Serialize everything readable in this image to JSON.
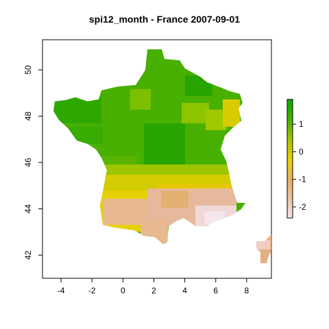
{
  "title": "spi12_month - France 2007-09-01",
  "colors": {
    "high": "#0aa800",
    "mid_green": "#7cc000",
    "neutral": "#e8d000",
    "low": "#e8b890",
    "very_low": "#f4e6ea"
  },
  "chart_data": {
    "type": "heatmap",
    "title": "spi12_month - France 2007-09-01",
    "xlabel": "",
    "ylabel": "",
    "x_ticks": [
      "-4",
      "-2",
      "0",
      "2",
      "4",
      "6",
      "8"
    ],
    "y_ticks": [
      "42",
      "44",
      "46",
      "48",
      "50"
    ],
    "xlim": [
      -5.2,
      9.6
    ],
    "ylim": [
      41.0,
      51.3
    ],
    "legend_ticks": [
      "1",
      "0",
      "-1",
      "-2"
    ],
    "legend_range": [
      -2.4,
      1.9
    ],
    "legend_position": "right"
  }
}
